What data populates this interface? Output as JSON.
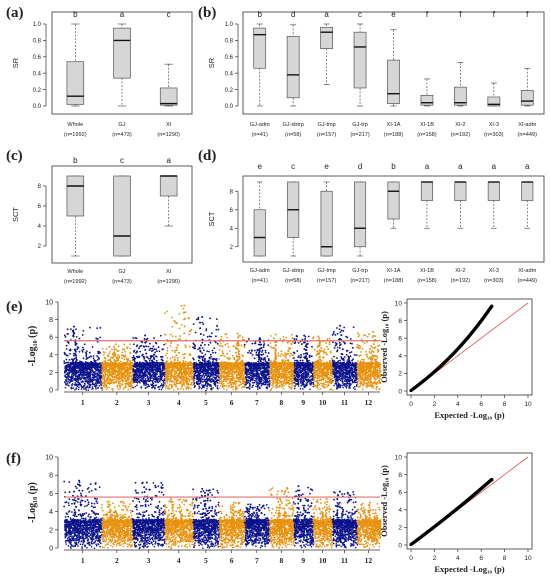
{
  "colors": {
    "box_fill": "#d6d6d6",
    "box_stroke": "#555555",
    "chr_odd": "#0a128c",
    "chr_even": "#e8920e",
    "threshold": "#e07070",
    "qq_points": "#000000",
    "qq_line": "#e05050"
  },
  "chart_data": [
    {
      "panel": "(a)",
      "type": "box",
      "ylabel": "SR",
      "ylim": [
        0,
        1
      ],
      "yticks": [
        "0.0",
        "0.2",
        "0.4",
        "0.6",
        "0.8",
        "1.0"
      ],
      "categories": [
        "Whole",
        "GJ",
        "XI"
      ],
      "n_labels": [
        "(n=1992)",
        "(n=473)",
        "(n=1290)"
      ],
      "letters": [
        "b",
        "a",
        "c"
      ],
      "stats": [
        {
          "min": 0,
          "q1": 0.02,
          "median": 0.12,
          "q3": 0.54,
          "max": 1.0
        },
        {
          "min": 0,
          "q1": 0.34,
          "median": 0.8,
          "q3": 0.95,
          "max": 1.0
        },
        {
          "min": 0,
          "q1": 0.01,
          "median": 0.03,
          "q3": 0.22,
          "max": 0.51
        }
      ]
    },
    {
      "panel": "(b)",
      "type": "box",
      "ylabel": "SR",
      "ylim": [
        0,
        1
      ],
      "yticks": [
        "0.0",
        "0.2",
        "0.4",
        "0.6",
        "0.8",
        "1.0"
      ],
      "categories": [
        "GJ-adm",
        "GJ-sbtrp",
        "GJ-tmp",
        "GJ-trp",
        "XI-1A",
        "XI-1B",
        "XI-2",
        "XI-3",
        "XI-adm"
      ],
      "n_labels": [
        "(n=41)",
        "(n=58)",
        "(n=157)",
        "(n=217)",
        "(n=188)",
        "(n=158)",
        "(n=192)",
        "(n=303)",
        "(n=449)"
      ],
      "letters": [
        "b",
        "d",
        "a",
        "c",
        "e",
        "f",
        "f",
        "f",
        "f"
      ],
      "stats": [
        {
          "min": 0,
          "q1": 0.46,
          "median": 0.87,
          "q3": 0.95,
          "max": 1.0
        },
        {
          "min": 0,
          "q1": 0.1,
          "median": 0.38,
          "q3": 0.85,
          "max": 0.99
        },
        {
          "min": 0.26,
          "q1": 0.7,
          "median": 0.9,
          "q3": 0.96,
          "max": 1.0
        },
        {
          "min": 0,
          "q1": 0.22,
          "median": 0.72,
          "q3": 0.9,
          "max": 1.0
        },
        {
          "min": 0,
          "q1": 0.03,
          "median": 0.15,
          "q3": 0.56,
          "max": 0.93
        },
        {
          "min": 0,
          "q1": 0.01,
          "median": 0.04,
          "q3": 0.13,
          "max": 0.33
        },
        {
          "min": 0,
          "q1": 0.01,
          "median": 0.04,
          "q3": 0.23,
          "max": 0.53
        },
        {
          "min": 0,
          "q1": 0.0,
          "median": 0.02,
          "q3": 0.11,
          "max": 0.28
        },
        {
          "min": 0,
          "q1": 0.01,
          "median": 0.06,
          "q3": 0.19,
          "max": 0.46
        }
      ]
    },
    {
      "panel": "(c)",
      "type": "box",
      "ylabel": "SCT",
      "ylim": [
        1,
        9
      ],
      "yticks": [
        "2",
        "4",
        "6",
        "8"
      ],
      "categories": [
        "Whole",
        "GJ",
        "XI"
      ],
      "n_labels": [
        "(n=1992)",
        "(n=473)",
        "(n=1290)"
      ],
      "letters": [
        "b",
        "c",
        "a"
      ],
      "stats": [
        {
          "min": 1,
          "q1": 5,
          "median": 8,
          "q3": 9,
          "max": 9
        },
        {
          "min": 1,
          "q1": 1,
          "median": 3,
          "q3": 9,
          "max": 9
        },
        {
          "min": 4,
          "q1": 7,
          "median": 9,
          "q3": 9,
          "max": 9
        }
      ]
    },
    {
      "panel": "(d)",
      "type": "box",
      "ylabel": "SCT",
      "ylim": [
        1,
        9
      ],
      "yticks": [
        "2",
        "4",
        "6",
        "8"
      ],
      "categories": [
        "GJ-adm",
        "GJ-sbtrp",
        "GJ-tmp",
        "GJ-trp",
        "XI-1A",
        "XI-1B",
        "XI-2",
        "XI-3",
        "XI-adm"
      ],
      "n_labels": [
        "(n=41)",
        "(n=58)",
        "(n=157)",
        "(n=217)",
        "(n=188)",
        "(n=158)",
        "(n=192)",
        "(n=303)",
        "(n=449)"
      ],
      "letters": [
        "e",
        "c",
        "e",
        "d",
        "b",
        "a",
        "a",
        "a",
        "a"
      ],
      "stats": [
        {
          "min": 1,
          "q1": 1,
          "median": 3,
          "q3": 6,
          "max": 9
        },
        {
          "min": 1,
          "q1": 3,
          "median": 6,
          "q3": 9,
          "max": 9
        },
        {
          "min": 1,
          "q1": 1,
          "median": 2,
          "q3": 8,
          "max": 9
        },
        {
          "min": 1,
          "q1": 2,
          "median": 4,
          "q3": 9,
          "max": 9
        },
        {
          "min": 4,
          "q1": 5,
          "median": 8,
          "q3": 9,
          "max": 9
        },
        {
          "min": 4,
          "q1": 7,
          "median": 9,
          "q3": 9,
          "max": 9
        },
        {
          "min": 4,
          "q1": 7,
          "median": 9,
          "q3": 9,
          "max": 9
        },
        {
          "min": 4,
          "q1": 7,
          "median": 9,
          "q3": 9,
          "max": 9
        },
        {
          "min": 4,
          "q1": 7,
          "median": 9,
          "q3": 9,
          "max": 9
        }
      ]
    },
    {
      "panel": "(e)",
      "type": "manhattan",
      "ylabel": "-Log₁₀ (p)",
      "ylim": [
        0,
        10
      ],
      "yticks": [
        "0",
        "2",
        "4",
        "6",
        "8",
        "10"
      ],
      "chromosomes": [
        "1",
        "2",
        "3",
        "4",
        "5",
        "6",
        "7",
        "8",
        "9",
        "10",
        "11",
        "12"
      ],
      "chr_widths": [
        1.45,
        1.2,
        1.25,
        1.1,
        1.0,
        1.0,
        0.95,
        0.95,
        0.75,
        0.75,
        0.95,
        0.9
      ],
      "threshold": 5.6,
      "chr_peak_max": [
        7.2,
        5.2,
        6.2,
        9.6,
        8.3,
        6.4,
        5.9,
        6.3,
        6.2,
        6.1,
        7.3,
        6.6
      ]
    },
    {
      "panel": "(e)",
      "type": "qq",
      "xlabel": "Expected -Log₁₀ (p)",
      "ylabel": "Observed -Log₁₀ (p)",
      "xlim": [
        0,
        10
      ],
      "ylim": [
        0,
        10
      ],
      "ticks": [
        "0",
        "2",
        "4",
        "6",
        "8",
        "10"
      ],
      "max_expected": 6.9,
      "max_observed": 9.6
    },
    {
      "panel": "(f)",
      "type": "manhattan",
      "ylabel": "-Log₁₀ (p)",
      "ylim": [
        0,
        10
      ],
      "yticks": [
        "0",
        "2",
        "4",
        "6",
        "8",
        "10"
      ],
      "chromosomes": [
        "1",
        "2",
        "3",
        "4",
        "5",
        "6",
        "7",
        "8",
        "9",
        "10",
        "11",
        "12"
      ],
      "chr_widths": [
        1.45,
        1.2,
        1.25,
        1.1,
        1.0,
        1.0,
        0.95,
        0.95,
        0.75,
        0.75,
        0.95,
        0.9
      ],
      "threshold": 5.6,
      "chr_peak_max": [
        7.4,
        5.1,
        7.2,
        5.4,
        6.5,
        5.0,
        4.8,
        6.6,
        6.8,
        5.4,
        6.2,
        5.0
      ]
    },
    {
      "panel": "(f)",
      "type": "qq",
      "xlabel": "Expected -Log₁₀ (p)",
      "ylabel": "Observed -Log₁₀ (p)",
      "xlim": [
        0,
        10
      ],
      "ylim": [
        0,
        10
      ],
      "ticks": [
        "0",
        "2",
        "4",
        "6",
        "8",
        "10"
      ],
      "max_expected": 6.9,
      "max_observed": 7.4
    }
  ]
}
